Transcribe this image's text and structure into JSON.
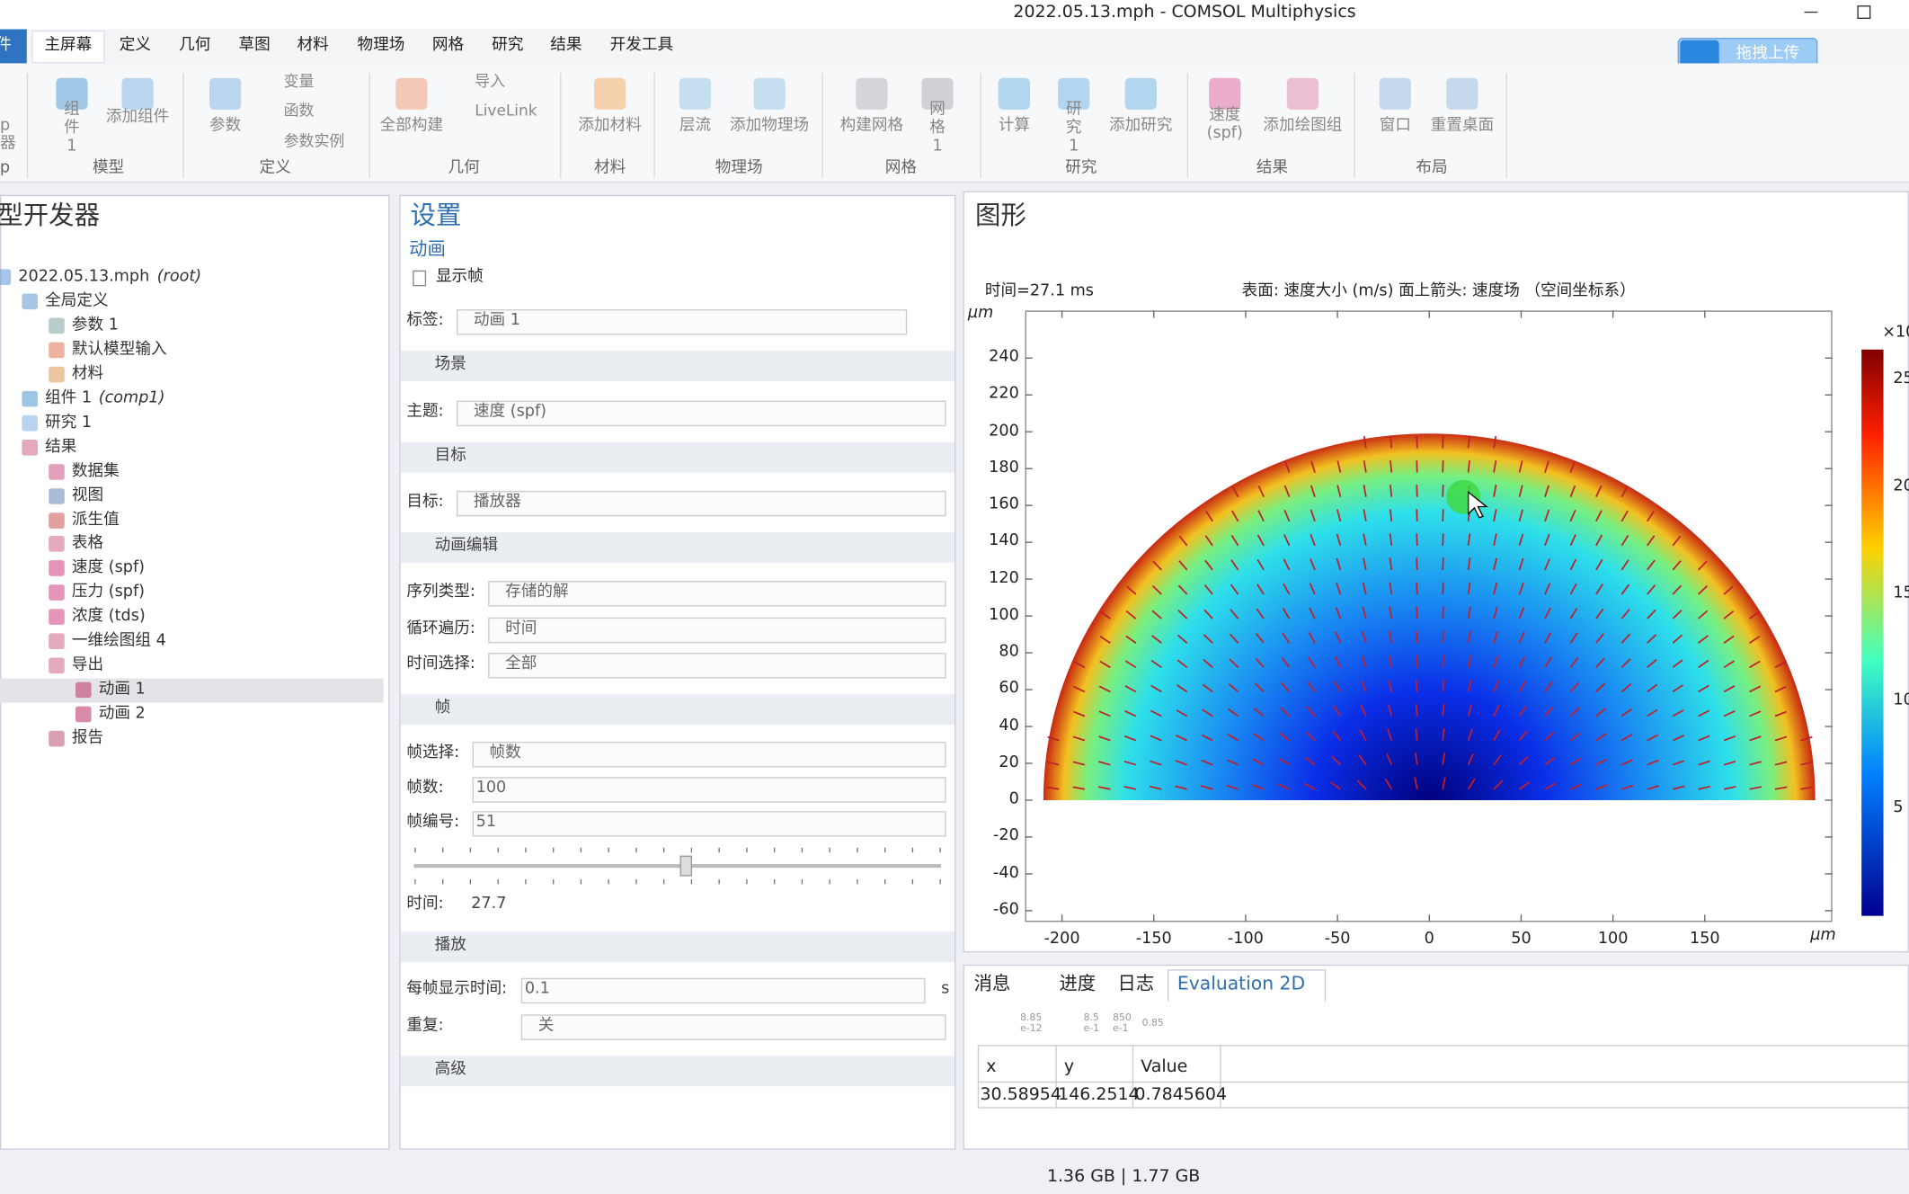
{
  "window": {
    "title": "2022.05.13.mph - COMSOL Multiphysics"
  },
  "menu_tabs": [
    "件",
    "主屏幕",
    "定义",
    "几何",
    "草图",
    "材料",
    "物理场",
    "网格",
    "研究",
    "结果",
    "开发工具"
  ],
  "upload_button": "拖拽上传",
  "ribbon": {
    "cut_lines": [
      "p",
      "器"
    ],
    "buttons": [
      "组件 1",
      "添加组件",
      "参数",
      "变量",
      "函数",
      "参数实例",
      "全部构建",
      "导入",
      "LiveLink",
      "添加材料",
      "层流",
      "添加物理场",
      "构建网格",
      "网格 1",
      "计算",
      "研究 1",
      "添加研究",
      "速度 (spf)",
      "添加绘图组",
      "窗口",
      "重置桌面"
    ],
    "groups": [
      "p",
      "模型",
      "定义",
      "几何",
      "材料",
      "物理场",
      "网格",
      "研究",
      "结果",
      "布局"
    ]
  },
  "model_builder": {
    "title": "型开发器",
    "tree": [
      {
        "label": "2022.05.13.mph",
        "tag": "(root)"
      },
      {
        "label": "全局定义"
      },
      {
        "label": "参数 1"
      },
      {
        "label": "默认模型输入"
      },
      {
        "label": "材料"
      },
      {
        "label": "组件 1",
        "tag": "(comp1)"
      },
      {
        "label": "研究 1"
      },
      {
        "label": "结果"
      },
      {
        "label": "数据集"
      },
      {
        "label": "视图"
      },
      {
        "label": "派生值"
      },
      {
        "label": "表格"
      },
      {
        "label": "速度 (spf)"
      },
      {
        "label": "压力 (spf)"
      },
      {
        "label": "浓度 (tds)"
      },
      {
        "label": "一维绘图组 4"
      },
      {
        "label": "导出"
      },
      {
        "label": "动画 1"
      },
      {
        "label": "动画 2"
      },
      {
        "label": "报告"
      }
    ]
  },
  "settings": {
    "title": "设置",
    "subtitle": "动画",
    "show_frame": "显示帧",
    "rows": [
      {
        "label": "标签:",
        "value": "动画 1"
      },
      {
        "section": "场景"
      },
      {
        "label": "主题:",
        "value": "速度 (spf)"
      },
      {
        "section": "目标"
      },
      {
        "label": "目标:",
        "value": "播放器"
      },
      {
        "section": "动画编辑"
      },
      {
        "label": "序列类型:",
        "value": "存储的解"
      },
      {
        "label": "循环遍历:",
        "value": "时间"
      },
      {
        "label": "时间选择:",
        "value": "全部"
      },
      {
        "section": "帧"
      },
      {
        "label": "帧选择:",
        "value": "帧数"
      },
      {
        "label": "帧数:",
        "value": 100
      },
      {
        "label": "帧编号:",
        "value": 51
      },
      {
        "label": "时间:",
        "value": 27.7
      },
      {
        "section": "播放"
      },
      {
        "label": "每帧显示时间:",
        "value": 0.1,
        "unit": "s"
      },
      {
        "label": "重复:",
        "value": "关"
      },
      {
        "section": "高级"
      }
    ]
  },
  "graphics": {
    "title": "图形",
    "time": "时间=27.1 ms",
    "caption": "表面: 速度大小 (m/s)  面上箭头: 速度场 （空间坐标系）",
    "y_unit": "µm",
    "x_unit": "µm",
    "yticks": [
      240,
      220,
      200,
      180,
      160,
      140,
      120,
      100,
      80,
      60,
      40,
      20,
      0,
      -20,
      -40,
      -60
    ],
    "xticks": [
      -200,
      -150,
      -100,
      -50,
      0,
      50,
      100,
      150
    ],
    "colorbar": {
      "multiplier": "×10",
      "labels": [
        25,
        20,
        15,
        10,
        5
      ]
    }
  },
  "messages": {
    "tabs": [
      "消息",
      "进度",
      "日志",
      "Evaluation 2D"
    ],
    "toolbar_labels": [
      "8.85\ne-12",
      "8.5\ne-1",
      "850\ne-1",
      "0.85"
    ]
  },
  "table": {
    "columns": [
      "x",
      "y",
      "Value"
    ],
    "rows": [
      [
        30.58954,
        146.2514,
        0.7845604
      ]
    ]
  },
  "status": "1.36 GB | 1.77 GB"
}
